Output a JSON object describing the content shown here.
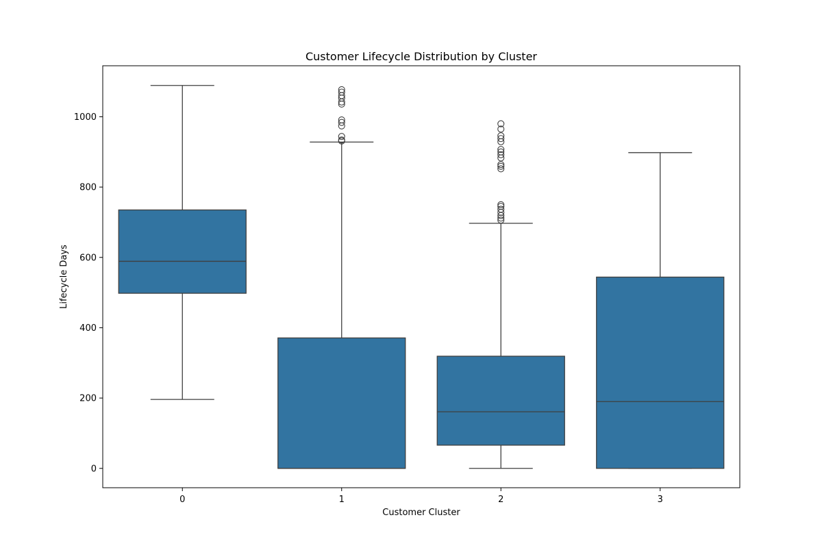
{
  "chart_data": {
    "type": "box",
    "title": "Customer Lifecycle Distribution by Cluster",
    "xlabel": "Customer Cluster",
    "ylabel": "Lifecycle Days",
    "categories": [
      "0",
      "1",
      "2",
      "3"
    ],
    "ylim": [
      -55,
      1145
    ],
    "yticks": [
      0,
      200,
      400,
      600,
      800,
      1000
    ],
    "grid": false,
    "colors": {
      "box_fill": "#3274a1",
      "line": "#3f3f3f",
      "background": "#ffffff",
      "axes": "#000000"
    },
    "boxes": [
      {
        "category": "0",
        "min": 196,
        "q1": 498,
        "median": 589,
        "q3": 735,
        "max": 1089,
        "outliers": []
      },
      {
        "category": "1",
        "min": 0,
        "q1": 0,
        "median": 0,
        "q3": 371,
        "max": 928,
        "outliers": [
          931,
          934,
          944,
          974,
          984,
          991,
          1036,
          1042,
          1053,
          1060,
          1070,
          1077
        ]
      },
      {
        "category": "2",
        "min": 0,
        "q1": 66,
        "median": 161,
        "q3": 319,
        "max": 697,
        "outliers": [
          706,
          712,
          719,
          728,
          737,
          745,
          750,
          852,
          859,
          864,
          883,
          892,
          900,
          907,
          929,
          938,
          946,
          965,
          980
        ]
      },
      {
        "category": "3",
        "min": 0,
        "q1": 0,
        "median": 190,
        "q3": 544,
        "max": 898,
        "outliers": []
      }
    ]
  }
}
